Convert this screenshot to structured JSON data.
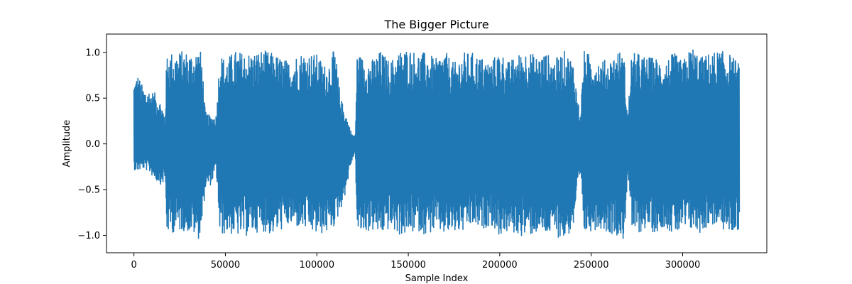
{
  "chart_data": {
    "type": "line",
    "title": "The Bigger Picture",
    "xlabel": "Sample Index",
    "ylabel": "Amplitude",
    "xlim": [
      -15000,
      346000
    ],
    "ylim": [
      -1.19,
      1.2
    ],
    "x_ticks": [
      0,
      50000,
      100000,
      150000,
      200000,
      250000,
      300000
    ],
    "x_tick_labels": [
      "0",
      "50000",
      "100000",
      "150000",
      "200000",
      "250000",
      "300000"
    ],
    "y_ticks": [
      -1.0,
      -0.5,
      0.0,
      0.5,
      1.0
    ],
    "y_tick_labels": [
      "−1.0",
      "−0.5",
      "0.0",
      "0.5",
      "1.0"
    ],
    "grid": false,
    "series": [
      {
        "color": "#1f77b4",
        "x": [
          0,
          2000,
          5000,
          8000,
          12000,
          15000,
          17000,
          18000,
          22000,
          27000,
          32000,
          35000,
          37000,
          39000,
          42000,
          45000,
          47000,
          50000,
          55000,
          60000,
          65000,
          70000,
          75000,
          80000,
          85000,
          90000,
          95000,
          100000,
          105000,
          110000,
          113000,
          115000,
          117000,
          119000,
          121000,
          122000,
          125000,
          130000,
          135000,
          140000,
          145000,
          150000,
          155000,
          160000,
          165000,
          170000,
          175000,
          180000,
          185000,
          190000,
          195000,
          199000,
          200000,
          205000,
          210000,
          215000,
          220000,
          225000,
          230000,
          235000,
          240000,
          244000,
          246000,
          250000,
          255000,
          260000,
          265000,
          268000,
          270000,
          272000,
          275000,
          280000,
          285000,
          290000,
          295000,
          300000,
          305000,
          310000,
          315000,
          320000,
          325000,
          331000
        ],
        "upper": [
          0.7,
          0.77,
          0.62,
          0.6,
          0.55,
          0.45,
          0.3,
          1.02,
          1.0,
          1.02,
          1.0,
          1.05,
          1.0,
          0.35,
          0.3,
          0.32,
          1.0,
          0.92,
          1.02,
          1.0,
          1.0,
          1.03,
          1.0,
          0.95,
          0.9,
          1.0,
          1.0,
          0.98,
          0.85,
          1.05,
          0.5,
          0.4,
          0.25,
          0.12,
          0.08,
          1.0,
          0.95,
          0.92,
          1.02,
          0.9,
          1.02,
          1.05,
          1.0,
          1.0,
          0.93,
          1.02,
          0.88,
          1.0,
          1.0,
          0.95,
          0.9,
          1.0,
          1.02,
          0.9,
          0.98,
          1.03,
          0.96,
          1.0,
          0.92,
          1.02,
          0.92,
          0.3,
          1.02,
          0.97,
          0.92,
          0.92,
          1.03,
          0.95,
          0.3,
          0.98,
          1.0,
          0.95,
          0.95,
          0.9,
          1.0,
          0.9,
          1.08,
          0.95,
          1.0,
          1.02,
          1.0,
          0.88
        ],
        "lower": [
          -0.28,
          -0.3,
          -0.27,
          -0.3,
          -0.4,
          -0.45,
          -0.4,
          -0.98,
          -0.97,
          -0.95,
          -0.98,
          -1.05,
          -0.95,
          -0.5,
          -0.45,
          -0.3,
          -1.02,
          -0.98,
          -1.0,
          -1.02,
          -0.98,
          -0.95,
          -1.0,
          -0.95,
          -0.9,
          -0.92,
          -0.95,
          -1.0,
          -0.98,
          -0.9,
          -0.72,
          -0.6,
          -0.4,
          -0.2,
          -0.1,
          -1.0,
          -0.98,
          -0.95,
          -1.0,
          -0.93,
          -1.0,
          -1.0,
          -0.95,
          -1.0,
          -0.95,
          -1.0,
          -0.98,
          -0.97,
          -0.9,
          -0.95,
          -0.88,
          -1.0,
          -1.0,
          -0.97,
          -1.0,
          -1.02,
          -0.98,
          -1.0,
          -1.0,
          -1.05,
          -0.95,
          -0.35,
          -1.0,
          -0.95,
          -0.92,
          -0.98,
          -1.0,
          -1.08,
          -0.3,
          -0.95,
          -1.0,
          -0.92,
          -0.98,
          -0.9,
          -1.0,
          -0.97,
          -0.95,
          -0.98,
          -0.88,
          -0.92,
          -0.98,
          -0.95
        ]
      }
    ]
  }
}
